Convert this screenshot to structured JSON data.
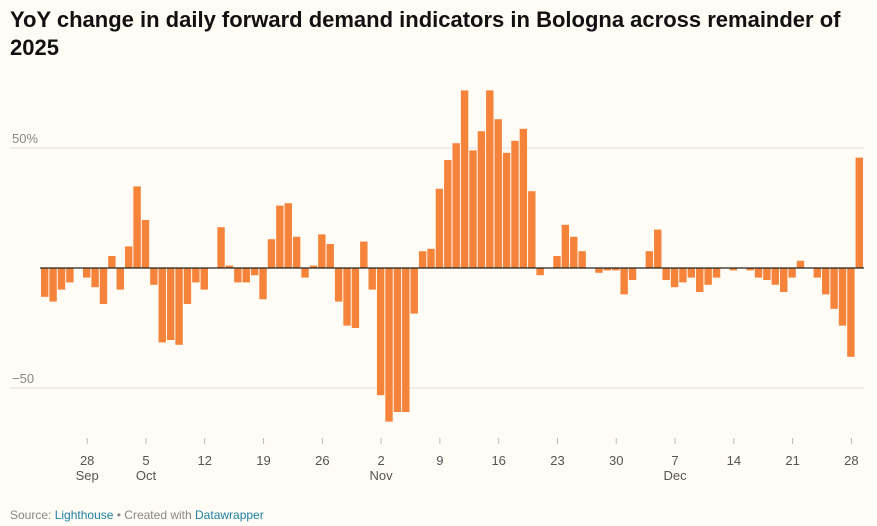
{
  "chart_data": {
    "type": "bar",
    "title": "YoY change in daily forward demand indicators in Bologna across remainder of 2025",
    "xlabel": "",
    "ylabel": "",
    "ylim": [
      -65,
      75
    ],
    "yticks": [
      {
        "value": 50,
        "label": "50%"
      },
      {
        "value": -50,
        "label": "−50"
      }
    ],
    "x_tick_labels": [
      {
        "index": 5,
        "day": "28",
        "month": "Sep"
      },
      {
        "index": 12,
        "day": "5",
        "month": "Oct"
      },
      {
        "index": 19,
        "day": "12",
        "month": ""
      },
      {
        "index": 26,
        "day": "19",
        "month": ""
      },
      {
        "index": 33,
        "day": "26",
        "month": ""
      },
      {
        "index": 40,
        "day": "2",
        "month": "Nov"
      },
      {
        "index": 47,
        "day": "9",
        "month": ""
      },
      {
        "index": 54,
        "day": "16",
        "month": ""
      },
      {
        "index": 61,
        "day": "23",
        "month": ""
      },
      {
        "index": 68,
        "day": "30",
        "month": ""
      },
      {
        "index": 75,
        "day": "7",
        "month": "Dec"
      },
      {
        "index": 82,
        "day": "14",
        "month": ""
      },
      {
        "index": 89,
        "day": "21",
        "month": ""
      },
      {
        "index": 96,
        "day": "28",
        "month": ""
      }
    ],
    "start_date": "Sep 23",
    "bar_color": "#f5833a",
    "values": [
      -12,
      -14,
      -9,
      -6,
      0,
      -4,
      -8,
      -15,
      5,
      -9,
      9,
      34,
      20,
      -7,
      -31,
      -30,
      -32,
      -15,
      -6,
      -9,
      0,
      17,
      1,
      -6,
      -6,
      -3,
      -13,
      12,
      26,
      27,
      13,
      -4,
      1,
      14,
      10,
      -14,
      -24,
      -25,
      11,
      -9,
      -53,
      -64,
      -60,
      -60,
      -19,
      7,
      8,
      33,
      45,
      52,
      74,
      49,
      57,
      74,
      62,
      48,
      53,
      58,
      32,
      -3,
      0,
      5,
      18,
      13,
      7,
      0,
      -2,
      -1,
      -1,
      -11,
      -5,
      0,
      7,
      16,
      -5,
      -8,
      -6,
      -4,
      -10,
      -7,
      -4,
      0,
      -1,
      0,
      -1,
      -4,
      -5,
      -7,
      -10,
      -4,
      3,
      0,
      -4,
      -11,
      -17,
      -24,
      -37,
      46
    ],
    "source_label": "Source:",
    "source_link": "Lighthouse",
    "created_label": "• Created with",
    "created_link": "Datawrapper"
  }
}
